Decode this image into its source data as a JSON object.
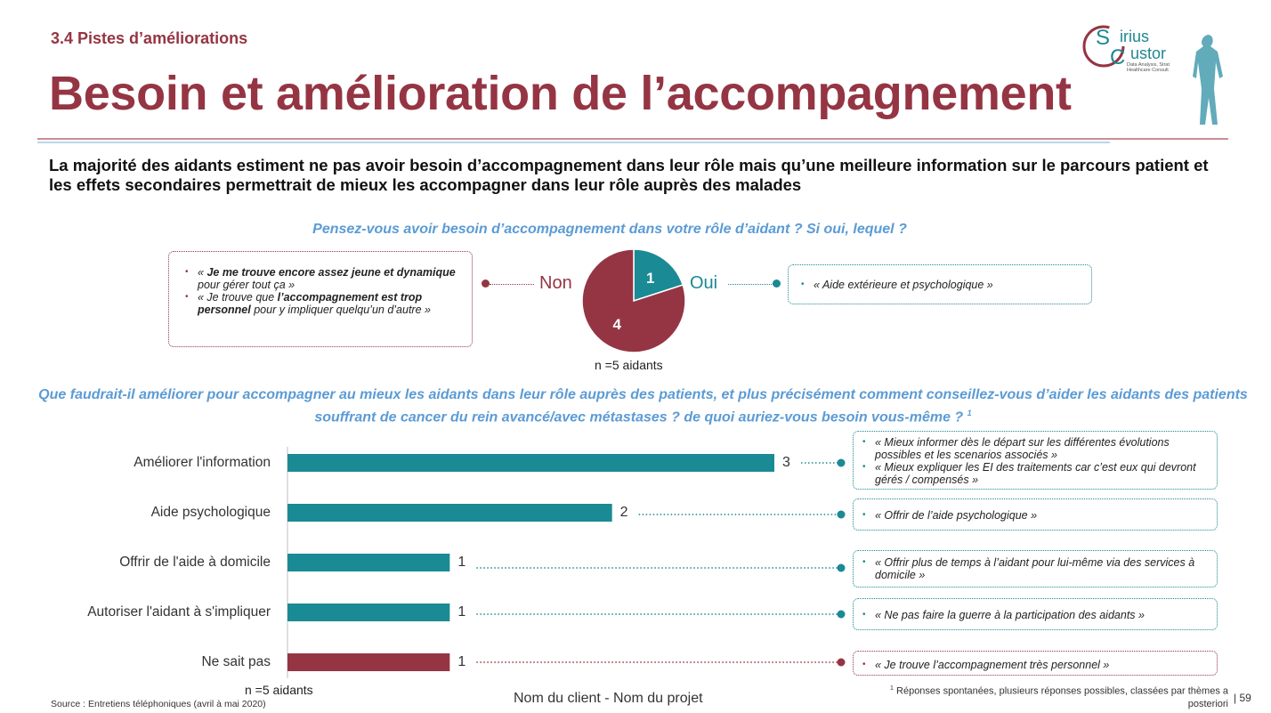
{
  "section_label": "3.4 Pistes d’améliorations",
  "title": "Besoin et amélioration de l’accompagnement",
  "logo": {
    "word_top": "irius",
    "word_bottom": "ustor",
    "tagline_1": "Data Analysis, Strat",
    "tagline_2": "Healthcare Consult"
  },
  "headline": "La majorité des aidants estiment ne pas avoir besoin d’accompagnement dans leur rôle mais qu’une meilleure information sur le parcours patient et les effets secondaires permettrait de mieux les accompagner dans leur rôle auprès des malades",
  "colors": {
    "primary": "#953543",
    "teal": "#1a8a94",
    "question_blue": "#5b9bd5"
  },
  "pie_section": {
    "question": "Pensez-vous avoir besoin d’accompagnement dans votre rôle d’aidant ? Si oui, lequel ?",
    "label_non": "Non",
    "label_oui": "Oui",
    "n_label": "n =5 aidants",
    "quotes_non": [
      {
        "pre": "« ",
        "bold": "Je me trouve encore assez jeune et dynamique",
        "post": " pour gérer tout ça »"
      },
      {
        "pre": "« Je trouve que ",
        "bold": "l’accompagnement est trop personnel",
        "post": " pour y impliquer quelqu’un d’autre »"
      }
    ],
    "quotes_oui": [
      "« Aide extérieure et psychologique »"
    ]
  },
  "bar_section": {
    "question": "Que faudrait-il améliorer pour accompagner au mieux les aidants dans leur rôle auprès des patients, et plus précisément comment conseillez-vous d’aider les aidants des patients souffrant de cancer du rein avancé/avec métastases ? de quoi auriez-vous besoin vous-même ?",
    "question_sup": "1",
    "n_label": "n =5 aidants",
    "quotes": [
      [
        "« Mieux informer dès le départ sur les différentes évolutions possibles et les scenarios associés »",
        "«  Mieux expliquer les EI des traitements car c’est eux qui devront gérés / compensés »"
      ],
      [
        "« Offrir de l’aide psychologique »"
      ],
      [
        "« Offrir plus de temps à l’aidant pour lui-même via des services à domicile »"
      ],
      [
        "« Ne pas faire la guerre à la participation des aidants »"
      ],
      [
        "« Je trouve l’accompagnement très personnel »"
      ]
    ]
  },
  "chart_data": [
    {
      "type": "pie",
      "labels": [
        "Oui",
        "Non"
      ],
      "values": [
        1,
        4
      ],
      "colors": [
        "#1a8a94",
        "#953543"
      ],
      "data_labels": [
        "1",
        "4"
      ]
    },
    {
      "type": "bar",
      "orientation": "horizontal",
      "categories": [
        "Améliorer l'information",
        "Aide psychologique",
        "Offrir de l'aide à domicile",
        "Autoriser l'aidant à s'impliquer",
        "Ne sait pas"
      ],
      "values": [
        3,
        2,
        1,
        1,
        1
      ],
      "data_labels": [
        "3",
        "2",
        "1",
        "1",
        "1"
      ],
      "colors": [
        "#1a8a94",
        "#1a8a94",
        "#1a8a94",
        "#1a8a94",
        "#953543"
      ],
      "xlim": [
        0,
        3
      ]
    }
  ],
  "footer": {
    "source": "Source : Entretiens téléphoniques (avril à mai 2020)",
    "center": "Nom du client - Nom du projet",
    "footnote_sup": "1",
    "footnote": " Réponses spontanées, plusieurs réponses possibles, classées par thèmes a posteriori",
    "page": "| 59"
  }
}
